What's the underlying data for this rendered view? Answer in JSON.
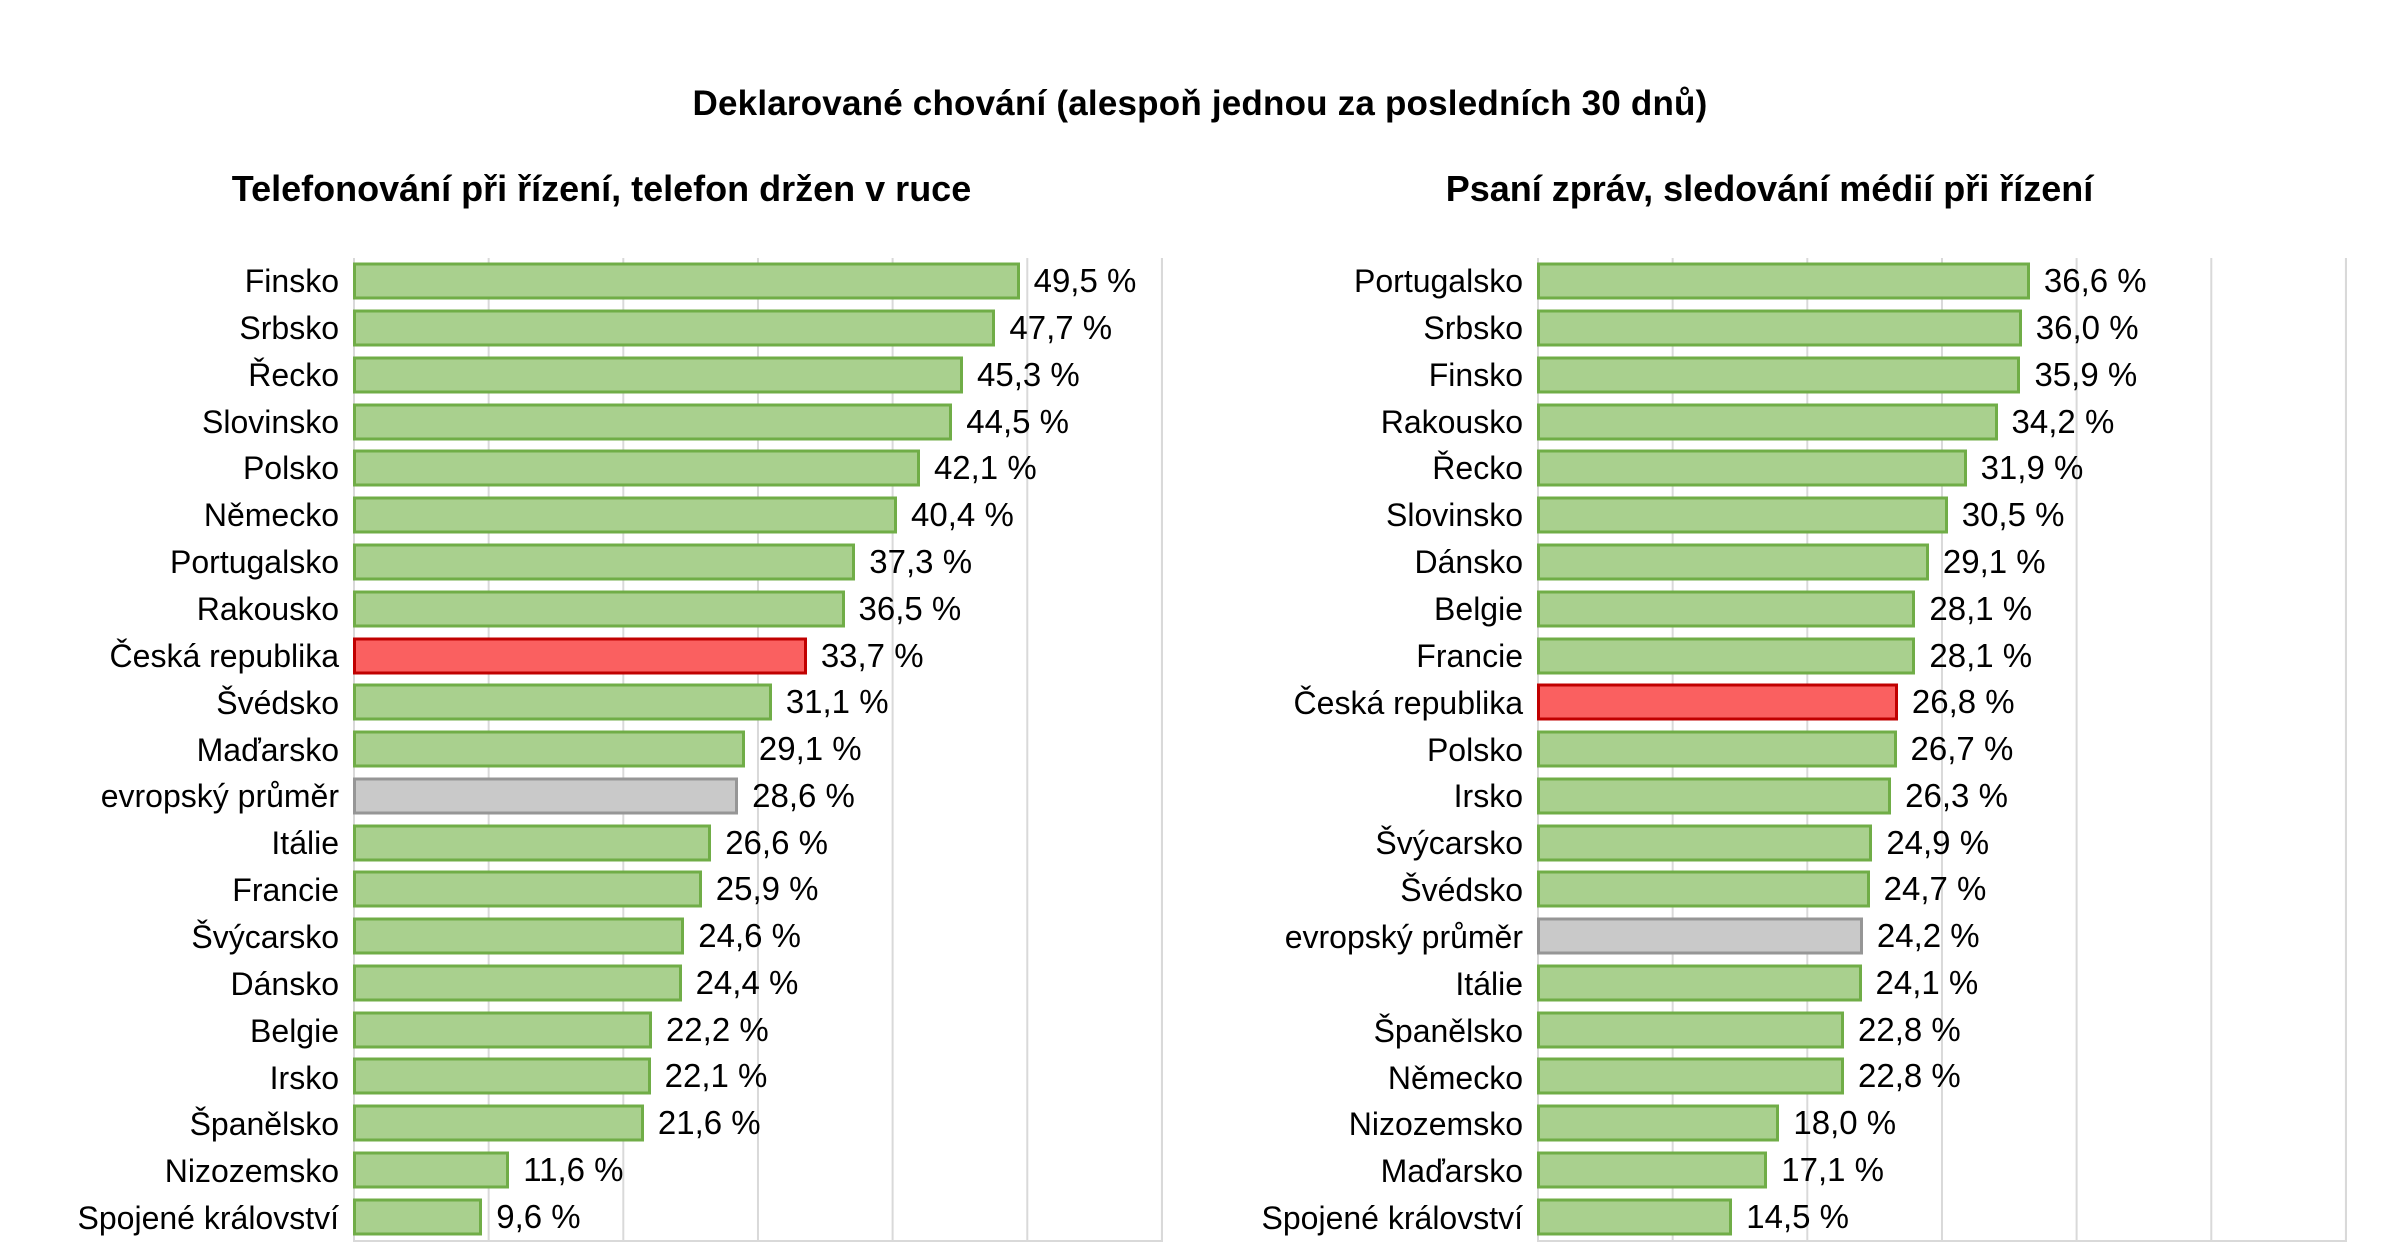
{
  "main_title": "Deklarované chování (alespoň jednou za posledních 30 dnů)",
  "colors": {
    "default_fill": "#a9d08e",
    "default_border": "#70ad47",
    "highlight_fill": "#fa6060",
    "highlight_border": "#c00000",
    "average_fill": "#c9c9c9",
    "average_border": "#969696",
    "gridline": "#d9d9d9",
    "text": "#000000"
  },
  "chart_data": [
    {
      "type": "bar",
      "orientation": "horizontal",
      "title": "Telefonování při řízení, telefon držen v ruce",
      "xlabel": "",
      "ylabel": "",
      "xlim": [
        0,
        60
      ],
      "gridline_step": 10,
      "grid": true,
      "legend": false,
      "value_suffix": " %",
      "items": [
        {
          "label": "Finsko",
          "value": 49.5,
          "display": "49,5 %"
        },
        {
          "label": "Srbsko",
          "value": 47.7,
          "display": "47,7 %"
        },
        {
          "label": "Řecko",
          "value": 45.3,
          "display": "45,3 %"
        },
        {
          "label": "Slovinsko",
          "value": 44.5,
          "display": "44,5 %"
        },
        {
          "label": "Polsko",
          "value": 42.1,
          "display": "42,1 %"
        },
        {
          "label": "Německo",
          "value": 40.4,
          "display": "40,4 %"
        },
        {
          "label": "Portugalsko",
          "value": 37.3,
          "display": "37,3 %"
        },
        {
          "label": "Rakousko",
          "value": 36.5,
          "display": "36,5 %"
        },
        {
          "label": "Česká republika",
          "value": 33.7,
          "display": "33,7 %",
          "role": "highlight"
        },
        {
          "label": "Švédsko",
          "value": 31.1,
          "display": "31,1 %"
        },
        {
          "label": "Maďarsko",
          "value": 29.1,
          "display": "29,1 %"
        },
        {
          "label": "evropský průměr",
          "value": 28.6,
          "display": "28,6 %",
          "role": "average"
        },
        {
          "label": "Itálie",
          "value": 26.6,
          "display": "26,6 %"
        },
        {
          "label": "Francie",
          "value": 25.9,
          "display": "25,9 %"
        },
        {
          "label": "Švýcarsko",
          "value": 24.6,
          "display": "24,6 %"
        },
        {
          "label": "Dánsko",
          "value": 24.4,
          "display": "24,4 %"
        },
        {
          "label": "Belgie",
          "value": 22.2,
          "display": "22,2 %"
        },
        {
          "label": "Irsko",
          "value": 22.1,
          "display": "22,1 %"
        },
        {
          "label": "Španělsko",
          "value": 21.6,
          "display": "21,6 %"
        },
        {
          "label": "Nizozemsko",
          "value": 11.6,
          "display": "11,6 %"
        },
        {
          "label": "Spojené království",
          "value": 9.6,
          "display": "9,6 %"
        }
      ]
    },
    {
      "type": "bar",
      "orientation": "horizontal",
      "title": "Psaní zpráv, sledování médií při řízení",
      "xlabel": "",
      "ylabel": "",
      "xlim": [
        0,
        60
      ],
      "gridline_step": 10,
      "grid": true,
      "legend": false,
      "value_suffix": " %",
      "items": [
        {
          "label": "Portugalsko",
          "value": 36.6,
          "display": "36,6 %"
        },
        {
          "label": "Srbsko",
          "value": 36.0,
          "display": "36,0 %"
        },
        {
          "label": "Finsko",
          "value": 35.9,
          "display": "35,9 %"
        },
        {
          "label": "Rakousko",
          "value": 34.2,
          "display": "34,2 %"
        },
        {
          "label": "Řecko",
          "value": 31.9,
          "display": "31,9 %"
        },
        {
          "label": "Slovinsko",
          "value": 30.5,
          "display": "30,5 %"
        },
        {
          "label": "Dánsko",
          "value": 29.1,
          "display": "29,1 %"
        },
        {
          "label": "Belgie",
          "value": 28.1,
          "display": "28,1 %"
        },
        {
          "label": "Francie",
          "value": 28.1,
          "display": "28,1 %"
        },
        {
          "label": "Česká republika",
          "value": 26.8,
          "display": "26,8 %",
          "role": "highlight"
        },
        {
          "label": "Polsko",
          "value": 26.7,
          "display": "26,7 %"
        },
        {
          "label": "Irsko",
          "value": 26.3,
          "display": "26,3 %"
        },
        {
          "label": "Švýcarsko",
          "value": 24.9,
          "display": "24,9 %"
        },
        {
          "label": "Švédsko",
          "value": 24.7,
          "display": "24,7 %"
        },
        {
          "label": "evropský průměr",
          "value": 24.2,
          "display": "24,2 %",
          "role": "average"
        },
        {
          "label": "Itálie",
          "value": 24.1,
          "display": "24,1 %"
        },
        {
          "label": "Španělsko",
          "value": 22.8,
          "display": "22,8 %"
        },
        {
          "label": "Německo",
          "value": 22.8,
          "display": "22,8 %"
        },
        {
          "label": "Nizozemsko",
          "value": 18.0,
          "display": "18,0 %"
        },
        {
          "label": "Maďarsko",
          "value": 17.1,
          "display": "17,1 %"
        },
        {
          "label": "Spojené království",
          "value": 14.5,
          "display": "14,5 %"
        }
      ]
    }
  ]
}
